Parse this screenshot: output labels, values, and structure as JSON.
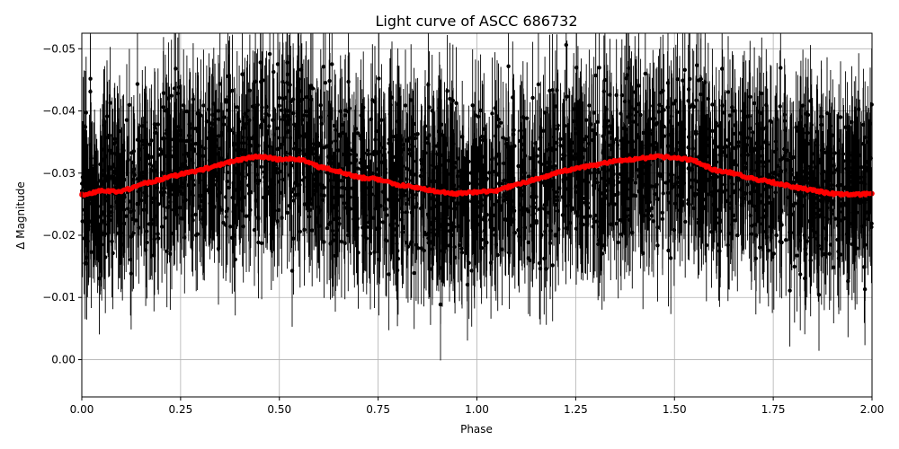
{
  "chart_data": {
    "type": "scatter",
    "title": "Light curve of ASCC 686732",
    "xlabel": "Phase",
    "ylabel": "Δ Magnitude",
    "xlim": [
      0.0,
      2.0
    ],
    "ylim": [
      0.006,
      -0.0525
    ],
    "y_inverted": true,
    "grid": true,
    "x_ticks": [
      0.0,
      0.25,
      0.5,
      0.75,
      1.0,
      1.25,
      1.5,
      1.75,
      2.0
    ],
    "x_tick_labels": [
      "0.00",
      "0.25",
      "0.50",
      "0.75",
      "1.00",
      "1.25",
      "1.50",
      "1.75",
      "2.00"
    ],
    "y_ticks": [
      0.0,
      -0.01,
      -0.02,
      -0.03,
      -0.04,
      -0.05
    ],
    "y_tick_labels": [
      "0.00",
      "−0.01",
      "−0.02",
      "−0.03",
      "−0.04",
      "−0.05"
    ],
    "series": [
      {
        "role": "observations-with-errorbars",
        "color": "#000000",
        "scatter_center": -0.0295,
        "scatter_spread": 0.0115,
        "errorbar_half_length": 0.009
      },
      {
        "role": "binned-model",
        "color": "#ff0000",
        "x": [
          0.0,
          0.05,
          0.1,
          0.15,
          0.2,
          0.25,
          0.3,
          0.35,
          0.4,
          0.45,
          0.5,
          0.55,
          0.6,
          0.65,
          0.7,
          0.75,
          0.8,
          0.85,
          0.9,
          0.95,
          1.0,
          1.05,
          1.1,
          1.15,
          1.2,
          1.25,
          1.3,
          1.35,
          1.4,
          1.45,
          1.5,
          1.55,
          1.6,
          1.65,
          1.7,
          1.75,
          1.8,
          1.85,
          1.9,
          1.95,
          2.0
        ],
        "y": [
          -0.0265,
          -0.0272,
          -0.027,
          -0.0282,
          -0.029,
          -0.0298,
          -0.0305,
          -0.0313,
          -0.0322,
          -0.0327,
          -0.0322,
          -0.0323,
          -0.031,
          -0.0303,
          -0.0293,
          -0.029,
          -0.0281,
          -0.0277,
          -0.027,
          -0.0267,
          -0.027,
          -0.0272,
          -0.0282,
          -0.029,
          -0.03,
          -0.0308,
          -0.0313,
          -0.032,
          -0.0322,
          -0.0327,
          -0.0325,
          -0.032,
          -0.0305,
          -0.03,
          -0.0291,
          -0.0285,
          -0.0278,
          -0.0272,
          -0.0267,
          -0.0265,
          -0.0267
        ]
      }
    ]
  }
}
